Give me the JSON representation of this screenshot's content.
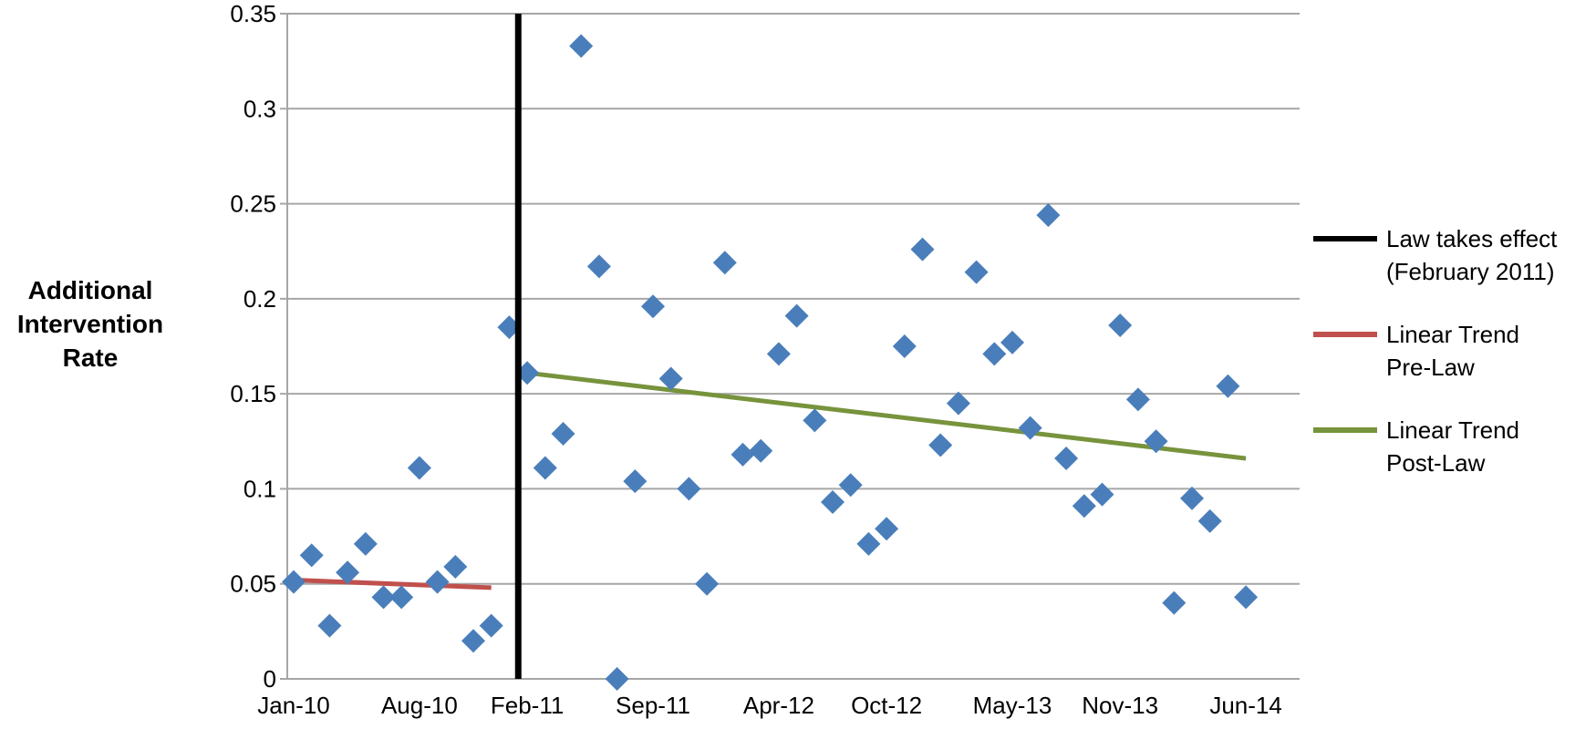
{
  "chart_data": {
    "type": "scatter",
    "title": "",
    "ylabel_lines": [
      "Additional",
      "Intervention",
      "Rate"
    ],
    "xlabel": "",
    "ylim": [
      0,
      0.35
    ],
    "yticks": [
      "0",
      "0.05",
      "0.1",
      "0.15",
      "0.2",
      "0.25",
      "0.3",
      "0.35"
    ],
    "xticks": [
      {
        "label": "Jan-10",
        "index": 0
      },
      {
        "label": "Aug-10",
        "index": 7
      },
      {
        "label": "Feb-11",
        "index": 13
      },
      {
        "label": "Sep-11",
        "index": 20
      },
      {
        "label": "Apr-12",
        "index": 27
      },
      {
        "label": "Oct-12",
        "index": 33
      },
      {
        "label": "May-13",
        "index": 40
      },
      {
        "label": "Nov-13",
        "index": 46
      },
      {
        "label": "Jun-14",
        "index": 53
      }
    ],
    "grid": true,
    "legend_position": "right",
    "series": [
      {
        "type": "scatter",
        "color": "#4a7ebb",
        "values": [
          0.051,
          0.065,
          0.028,
          0.056,
          0.071,
          0.043,
          0.043,
          0.111,
          0.051,
          0.059,
          0.02,
          0.028,
          0.185,
          0.161,
          0.111,
          0.129,
          0.333,
          0.217,
          0.0,
          0.104,
          0.196,
          0.158,
          0.1,
          0.05,
          0.219,
          0.118,
          0.12,
          0.171,
          0.191,
          0.136,
          0.093,
          0.102,
          0.071,
          0.079,
          0.175,
          0.226,
          0.123,
          0.145,
          0.214,
          0.171,
          0.177,
          0.132,
          0.244,
          0.116,
          0.091,
          0.097,
          0.186,
          0.147,
          0.125,
          0.04,
          0.095,
          0.083,
          0.154,
          0.043
        ]
      },
      {
        "name_lines": [
          "Law takes effect",
          "(February 2011)"
        ],
        "type": "vline",
        "color": "#000000",
        "x_index": 12.5
      },
      {
        "name_lines": [
          "Linear Trend",
          "Pre-Law"
        ],
        "type": "line",
        "color": "#c0504d",
        "points": [
          [
            0,
            0.052
          ],
          [
            11,
            0.048
          ]
        ]
      },
      {
        "name_lines": [
          "Linear Trend",
          "Post-Law"
        ],
        "type": "line",
        "color": "#77933c",
        "points": [
          [
            13,
            0.161
          ],
          [
            53,
            0.116
          ]
        ]
      }
    ]
  }
}
